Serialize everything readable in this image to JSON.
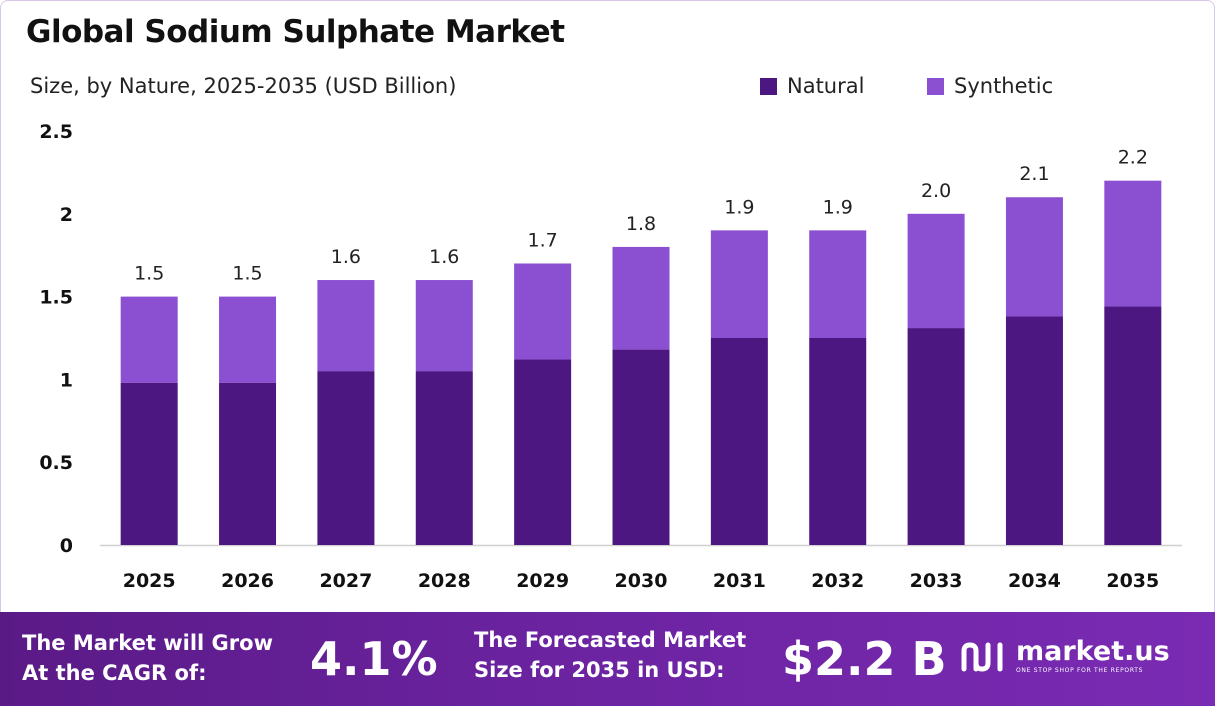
{
  "chart_data": {
    "type": "bar",
    "stacked": true,
    "title": "Global Sodium Sulphate Market",
    "subtitle": "Size, by Nature, 2025-2035 (USD Billion)",
    "categories": [
      "2025",
      "2026",
      "2027",
      "2028",
      "2029",
      "2030",
      "2031",
      "2032",
      "2033",
      "2034",
      "2035"
    ],
    "series": [
      {
        "name": "Natural",
        "color": "#4d1782",
        "values": [
          0.98,
          0.98,
          1.05,
          1.05,
          1.12,
          1.18,
          1.25,
          1.25,
          1.31,
          1.38,
          1.44
        ]
      },
      {
        "name": "Synthetic",
        "color": "#8b4fd1",
        "values": [
          0.52,
          0.52,
          0.55,
          0.55,
          0.58,
          0.62,
          0.65,
          0.65,
          0.69,
          0.72,
          0.76
        ]
      }
    ],
    "totals": [
      1.5,
      1.5,
      1.6,
      1.6,
      1.7,
      1.8,
      1.9,
      1.9,
      2.0,
      2.1,
      2.2
    ],
    "total_labels": [
      "1.5",
      "1.5",
      "1.6",
      "1.6",
      "1.7",
      "1.8",
      "1.9",
      "1.9",
      "2.0",
      "2.1",
      "2.2"
    ],
    "ylim": [
      0,
      2.5
    ],
    "yticks": [
      0,
      0.5,
      1,
      1.5,
      2,
      2.5
    ],
    "ytick_labels": [
      "0",
      "0.5",
      "1",
      "1.5",
      "2",
      "2.5"
    ],
    "grid": false,
    "legend_position": "top-right"
  },
  "footer": {
    "cagr_label_line1": "The Market will Grow",
    "cagr_label_line2": "At the CAGR of:",
    "cagr_value": "4.1%",
    "forecast_label_line1": "The Forecasted Market",
    "forecast_label_line2": "Size for 2035 in USD:",
    "forecast_value": "$2.2 B",
    "brand_name": "market.us",
    "brand_tagline": "ONE STOP SHOP FOR THE REPORTS"
  }
}
